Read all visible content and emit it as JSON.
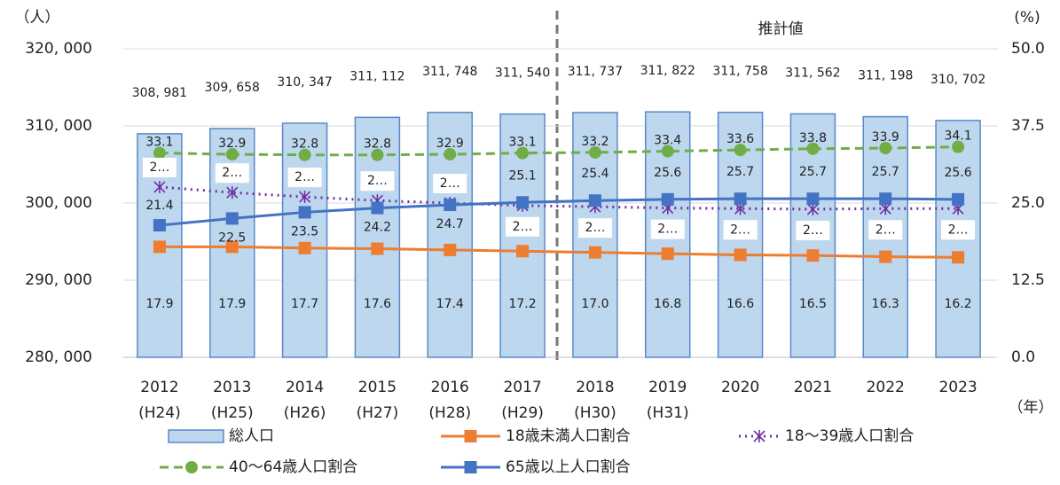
{
  "chart_data": {
    "type": "combo",
    "y_label": "（人）",
    "y2_label": "(%)",
    "x_label": "（年）",
    "annotation": "推計値",
    "categories": [
      "2012",
      "2013",
      "2014",
      "2015",
      "2016",
      "2017",
      "2018",
      "2019",
      "2020",
      "2021",
      "2022",
      "2023"
    ],
    "subcategories": [
      "(H24)",
      "(H25)",
      "(H26)",
      "(H27)",
      "(H28)",
      "(H29)",
      "(H30)",
      "(H31)",
      null,
      null,
      null,
      null
    ],
    "ylim": [
      280000,
      320000
    ],
    "yticks": [
      {
        "value": 280000,
        "label": "280, 000"
      },
      {
        "value": 290000,
        "label": "290, 000"
      },
      {
        "value": 300000,
        "label": "300, 000"
      },
      {
        "value": 310000,
        "label": "310, 000"
      },
      {
        "value": 320000,
        "label": "320, 000"
      }
    ],
    "y2lim": [
      0,
      50
    ],
    "y2ticks": [
      {
        "value": 0,
        "label": "0.0"
      },
      12.5,
      {
        "value": 25,
        "label": "25.0"
      },
      37.5,
      {
        "value": 50,
        "label": "50.0"
      }
    ],
    "series": [
      {
        "name": "総人口",
        "type": "bar",
        "color": "#bdd7ee",
        "values": [
          308981,
          309658,
          310347,
          311112,
          311748,
          311540,
          311737,
          311822,
          311758,
          311562,
          311198,
          310702
        ],
        "value_labels": [
          "308, 981",
          "309, 658",
          "310, 347",
          "311, 112",
          "311, 748",
          "311, 540",
          "311, 737",
          "311, 822",
          "311, 758",
          "311, 562",
          "311, 198",
          "310, 702"
        ]
      },
      {
        "name": "18歳未満人口割合",
        "type": "line",
        "axis": "y2",
        "color": "#ed7d31",
        "style": "solid",
        "marker": "square",
        "values": [
          17.9,
          17.9,
          17.7,
          17.6,
          17.4,
          17.2,
          17.0,
          16.8,
          16.6,
          16.5,
          16.3,
          16.2
        ],
        "value_labels": [
          "17.9",
          "17.9",
          "17.7",
          "17.6",
          "17.4",
          "17.2",
          "17.0",
          "16.8",
          "16.6",
          "16.5",
          "16.3",
          "16.2"
        ]
      },
      {
        "name": "18～39歳人口割合",
        "type": "line",
        "axis": "y2",
        "color": "#7030a0",
        "style": "dotted",
        "marker": "asterisk",
        "values": [
          27.6,
          26.7,
          26.0,
          25.4,
          25.0,
          24.6,
          24.4,
          24.2,
          24.1,
          24.0,
          24.1,
          24.1
        ],
        "value_labels": [
          "2…",
          "2…",
          "2…",
          "2…",
          "2…",
          "2…",
          "2…",
          "2…",
          "2…",
          "2…",
          "2…",
          "2…"
        ]
      },
      {
        "name": "40～64歳人口割合",
        "type": "line",
        "axis": "y2",
        "color": "#70ad47",
        "style": "dashed",
        "marker": "circle",
        "values": [
          33.1,
          32.9,
          32.8,
          32.8,
          32.9,
          33.1,
          33.2,
          33.4,
          33.6,
          33.8,
          33.9,
          34.1
        ],
        "value_labels": [
          "33.1",
          "32.9",
          "32.8",
          "32.8",
          "32.9",
          "33.1",
          "33.2",
          "33.4",
          "33.6",
          "33.8",
          "33.9",
          "34.1"
        ]
      },
      {
        "name": "65歳以上人口割合",
        "type": "line",
        "axis": "y2",
        "color": "#4472c4",
        "style": "solid",
        "marker": "square",
        "values": [
          21.4,
          22.5,
          23.5,
          24.2,
          24.7,
          25.1,
          25.4,
          25.6,
          25.7,
          25.7,
          25.7,
          25.6
        ],
        "value_labels": [
          "21.4",
          "22.5",
          "23.5",
          "24.2",
          "24.7",
          "25.1",
          "25.4",
          "25.6",
          "25.7",
          "25.7",
          "25.7",
          "25.6"
        ]
      }
    ]
  }
}
